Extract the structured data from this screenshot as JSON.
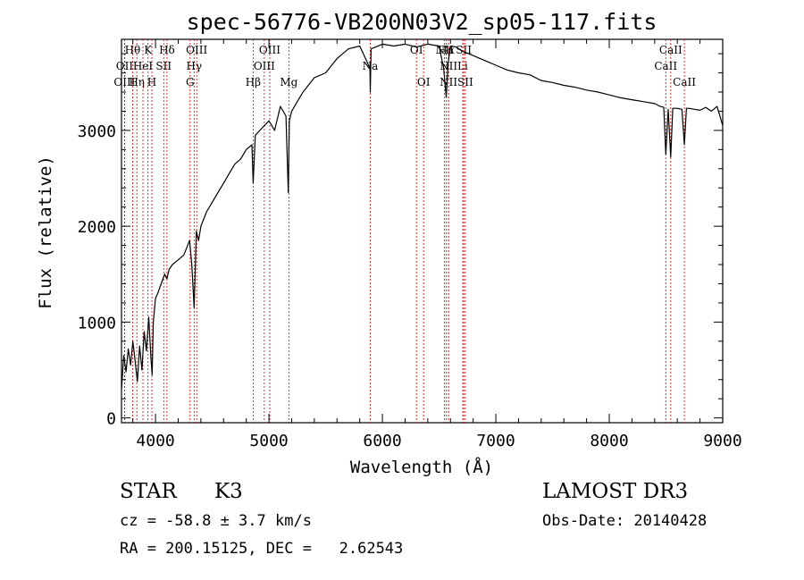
{
  "chart_data": {
    "type": "line",
    "title": "spec-56776-VB200N03V2_sp05-117.fits",
    "xlabel": "Wavelength (Å)",
    "ylabel": "Flux (relative)",
    "xlim": [
      3700,
      9000
    ],
    "ylim": [
      -50,
      3950
    ],
    "xticks": [
      4000,
      5000,
      6000,
      7000,
      8000,
      9000
    ],
    "yticks": [
      0,
      1000,
      2000,
      3000
    ],
    "series": [
      {
        "name": "flux",
        "x": [
          3700,
          3720,
          3740,
          3760,
          3780,
          3800,
          3820,
          3840,
          3860,
          3880,
          3900,
          3920,
          3940,
          3960,
          3970,
          3980,
          4000,
          4020,
          4050,
          4080,
          4101,
          4120,
          4150,
          4200,
          4250,
          4300,
          4320,
          4340,
          4360,
          4380,
          4400,
          4450,
          4500,
          4550,
          4600,
          4650,
          4700,
          4750,
          4800,
          4850,
          4861,
          4880,
          4920,
          4960,
          5000,
          5050,
          5100,
          5150,
          5170,
          5180,
          5200,
          5250,
          5300,
          5400,
          5500,
          5600,
          5700,
          5800,
          5890,
          5893,
          5900,
          6000,
          6100,
          6200,
          6300,
          6400,
          6500,
          6540,
          6563,
          6580,
          6600,
          6650,
          6700,
          6800,
          6900,
          7000,
          7100,
          7200,
          7300,
          7400,
          7500,
          7600,
          7700,
          7800,
          7900,
          8000,
          8100,
          8200,
          8300,
          8400,
          8450,
          8480,
          8498,
          8520,
          8542,
          8560,
          8600,
          8640,
          8662,
          8680,
          8700,
          8750,
          8800,
          8850,
          8900,
          8950,
          9000
        ],
        "y": [
          300,
          650,
          480,
          720,
          550,
          800,
          600,
          380,
          750,
          500,
          900,
          700,
          1050,
          620,
          450,
          1000,
          1250,
          1300,
          1400,
          1500,
          1450,
          1550,
          1600,
          1650,
          1700,
          1850,
          1600,
          1150,
          1950,
          1850,
          2000,
          2150,
          2250,
          2350,
          2450,
          2550,
          2650,
          2700,
          2800,
          2850,
          2450,
          2950,
          3000,
          3050,
          3100,
          3000,
          3250,
          3150,
          2350,
          3100,
          3200,
          3300,
          3400,
          3550,
          3600,
          3750,
          3850,
          3880,
          3650,
          3400,
          3850,
          3900,
          3880,
          3900,
          3870,
          3900,
          3880,
          3650,
          3350,
          3700,
          3880,
          3870,
          3830,
          3780,
          3730,
          3680,
          3630,
          3600,
          3580,
          3520,
          3500,
          3470,
          3450,
          3420,
          3400,
          3370,
          3340,
          3320,
          3300,
          3280,
          3250,
          3240,
          2750,
          3220,
          2720,
          3230,
          3230,
          3220,
          2850,
          3230,
          3230,
          3220,
          3210,
          3240,
          3200,
          3250,
          3050
        ]
      }
    ],
    "lines": [
      {
        "label": "Hθ",
        "x": 3798,
        "row": 0
      },
      {
        "label": "OII",
        "x": 3727,
        "row": 1
      },
      {
        "label": "OIII",
        "x": 3727,
        "row": 2
      },
      {
        "label": "Hη",
        "x": 3835,
        "row": 2
      },
      {
        "label": "HeI",
        "x": 3889,
        "row": 1
      },
      {
        "label": "K",
        "x": 3934,
        "row": 0
      },
      {
        "label": "H",
        "x": 3968,
        "row": 2
      },
      {
        "label": "SII",
        "x": 4072,
        "row": 1
      },
      {
        "label": "Hδ",
        "x": 4101,
        "row": 0
      },
      {
        "label": "OIII",
        "x": 4363,
        "row": 0
      },
      {
        "label": "Hγ",
        "x": 4340,
        "row": 1
      },
      {
        "label": "G",
        "x": 4305,
        "row": 2
      },
      {
        "label": "Hβ",
        "x": 4861,
        "row": 2
      },
      {
        "label": "OIII",
        "x": 5007,
        "row": 0
      },
      {
        "label": "OIII",
        "x": 4959,
        "row": 1
      },
      {
        "label": "Mg",
        "x": 5175,
        "row": 2
      },
      {
        "label": "Na",
        "x": 5893,
        "row": 1
      },
      {
        "label": "OI",
        "x": 6300,
        "row": 0
      },
      {
        "label": "OI",
        "x": 6363,
        "row": 2
      },
      {
        "label": "NII",
        "x": 6548,
        "row": 0
      },
      {
        "label": "Hα",
        "x": 6563,
        "row": 0
      },
      {
        "label": "SII",
        "x": 6717,
        "row": 0
      },
      {
        "label": "NII",
        "x": 6583,
        "row": 1
      },
      {
        "label": "Li",
        "x": 6708,
        "row": 1
      },
      {
        "label": "NII",
        "x": 6583,
        "row": 2
      },
      {
        "label": "SII",
        "x": 6731,
        "row": 2
      },
      {
        "label": "CaII",
        "x": 8542,
        "row": 0
      },
      {
        "label": "CaII",
        "x": 8498,
        "row": 1
      },
      {
        "label": "CaII",
        "x": 8662,
        "row": 2
      }
    ],
    "line_color": "#cc0000"
  },
  "info": {
    "object_class": "STAR",
    "subclass": "K3",
    "survey": "LAMOST DR3",
    "cz": "cz = -58.8 ± 3.7 km/s",
    "obs_date": "Obs-Date: 20140428",
    "coords": "RA = 200.15125, DEC =   2.62543"
  }
}
